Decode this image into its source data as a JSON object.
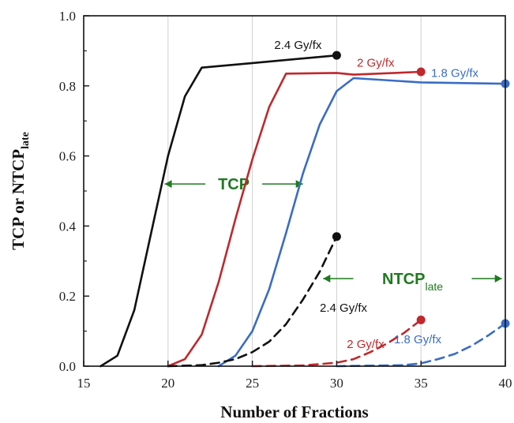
{
  "chart_data": {
    "type": "line",
    "xlabel": "Number of Fractions",
    "ylabel_main": "TCP or NTCP",
    "ylabel_sub": "late",
    "xlim": [
      15,
      40
    ],
    "ylim": [
      0,
      1.0
    ],
    "xticks": [
      "15",
      "20",
      "25",
      "30",
      "35",
      "40"
    ],
    "yticks": [
      "0.0",
      "0.2",
      "0.4",
      "0.6",
      "0.8",
      "1.0"
    ],
    "grid": "vertical",
    "series": [
      {
        "name": "2.4 Gy/fx",
        "kind": "TCP",
        "color": "#111111",
        "dash": false,
        "x": [
          16,
          17,
          18,
          19,
          20,
          21,
          22,
          25,
          30
        ],
        "y": [
          0.0,
          0.03,
          0.16,
          0.38,
          0.6,
          0.77,
          0.852,
          0.865,
          0.887
        ],
        "marker_end": true
      },
      {
        "name": "2 Gy/fx",
        "kind": "TCP",
        "color": "#c0282d",
        "dash": false,
        "x": [
          20,
          21,
          22,
          23,
          24,
          25,
          26,
          27,
          30,
          31,
          35
        ],
        "y": [
          0.0,
          0.02,
          0.09,
          0.24,
          0.42,
          0.59,
          0.74,
          0.835,
          0.837,
          0.832,
          0.84
        ],
        "marker_end": true
      },
      {
        "name": "1.8 Gy/fx",
        "kind": "TCP",
        "color": "#3a6cc4",
        "dash": false,
        "x": [
          23,
          24,
          25,
          26,
          27,
          28,
          29,
          30,
          31,
          35,
          40
        ],
        "y": [
          0.0,
          0.03,
          0.1,
          0.22,
          0.38,
          0.55,
          0.69,
          0.785,
          0.822,
          0.81,
          0.806
        ],
        "marker_end": true
      },
      {
        "name": "2.4 Gy/fx",
        "kind": "NTCP",
        "color": "#111111",
        "dash": true,
        "x": [
          20,
          22,
          23,
          24,
          25,
          26,
          27,
          28,
          29,
          30
        ],
        "y": [
          0.0,
          0.003,
          0.01,
          0.02,
          0.04,
          0.07,
          0.12,
          0.19,
          0.27,
          0.37
        ],
        "marker_end": true
      },
      {
        "name": "2 Gy/fx",
        "kind": "NTCP",
        "color": "#c0282d",
        "dash": true,
        "x": [
          25,
          28,
          30,
          31,
          32,
          33,
          34,
          35
        ],
        "y": [
          0.0,
          0.002,
          0.01,
          0.02,
          0.04,
          0.065,
          0.095,
          0.132
        ],
        "marker_end": true
      },
      {
        "name": "1.8 Gy/fx",
        "kind": "NTCP",
        "color": "#3a6cc4",
        "dash": true,
        "x": [
          30,
          34,
          35,
          36,
          37,
          38,
          39,
          40
        ],
        "y": [
          0.0,
          0.003,
          0.008,
          0.02,
          0.035,
          0.058,
          0.088,
          0.122
        ],
        "marker_end": true
      }
    ],
    "annotations": [
      {
        "text": "TCP",
        "color": "#1f7a1f",
        "x_from": 19.8,
        "x_to": 28,
        "y": 0.52
      },
      {
        "text": "NTCP",
        "sub": "late",
        "color": "#1f7a1f",
        "x_from": 29.2,
        "x_to": 39.8,
        "y": 0.25
      }
    ],
    "labels": [
      {
        "text": "2.4 Gy/fx",
        "color": "#111111",
        "x": 26.3,
        "y": 0.905
      },
      {
        "text": "2 Gy/fx",
        "color": "#c0282d",
        "x": 31.2,
        "y": 0.855
      },
      {
        "text": "1.8 Gy/fx",
        "color": "#3a6cc4",
        "x": 35.6,
        "y": 0.825
      },
      {
        "text": "2.4 Gy/fx",
        "color": "#111111",
        "x": 29.0,
        "y": 0.155
      },
      {
        "text": "2 Gy/fx",
        "color": "#c0282d",
        "x": 30.6,
        "y": 0.052
      },
      {
        "text": "1.8 Gy/fx",
        "color": "#3a6cc4",
        "x": 33.4,
        "y": 0.065
      }
    ]
  }
}
